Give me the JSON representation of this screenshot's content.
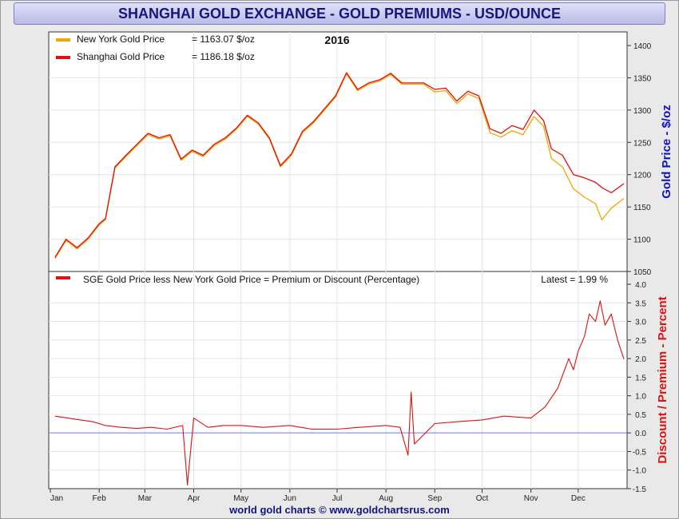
{
  "title": "SHANGHAI GOLD EXCHANGE - GOLD PREMIUMS - USD/OUNCE",
  "footer": "world gold charts © www.goldchartsrus.com",
  "colors": {
    "ny": "#f2a600",
    "sh": "#e01010",
    "premium": "#e01010",
    "zero_line": "#7777ee",
    "left_axis_label": "#1010cc",
    "right_axis_label": "#e01010"
  },
  "chart_data": [
    {
      "type": "line",
      "title": "2016",
      "ylabel": "Gold Price - $/oz",
      "ylim": [
        1050,
        1400
      ],
      "yticks": [
        1050,
        1100,
        1150,
        1200,
        1250,
        1300,
        1350,
        1400
      ],
      "legend": [
        {
          "name": "New York Gold Price",
          "value": "= 1163.07 $/oz"
        },
        {
          "name": "Shanghai Gold Price",
          "value": "= 1186.18 $/oz"
        }
      ],
      "x": [
        "2016-01-04",
        "2016-01-11",
        "2016-01-18",
        "2016-01-25",
        "2016-02-01",
        "2016-02-05",
        "2016-02-11",
        "2016-02-18",
        "2016-02-25",
        "2016-03-03",
        "2016-03-10",
        "2016-03-17",
        "2016-03-24",
        "2016-03-31",
        "2016-04-07",
        "2016-04-14",
        "2016-04-21",
        "2016-04-28",
        "2016-05-05",
        "2016-05-12",
        "2016-05-19",
        "2016-05-26",
        "2016-06-02",
        "2016-06-09",
        "2016-06-16",
        "2016-06-23",
        "2016-06-30",
        "2016-07-07",
        "2016-07-14",
        "2016-07-21",
        "2016-07-28",
        "2016-08-04",
        "2016-08-11",
        "2016-08-18",
        "2016-08-25",
        "2016-09-01",
        "2016-09-08",
        "2016-09-15",
        "2016-09-22",
        "2016-09-29",
        "2016-10-06",
        "2016-10-13",
        "2016-10-20",
        "2016-10-27",
        "2016-11-03",
        "2016-11-09",
        "2016-11-14",
        "2016-11-21",
        "2016-11-28",
        "2016-12-05",
        "2016-12-12",
        "2016-12-16",
        "2016-12-22",
        "2016-12-30"
      ],
      "series": [
        {
          "name": "New York Gold Price",
          "values": [
            1070,
            1098,
            1085,
            1100,
            1122,
            1130,
            1210,
            1228,
            1245,
            1262,
            1255,
            1260,
            1222,
            1236,
            1228,
            1245,
            1255,
            1270,
            1290,
            1278,
            1255,
            1212,
            1230,
            1265,
            1280,
            1300,
            1320,
            1356,
            1330,
            1340,
            1345,
            1355,
            1340,
            1340,
            1340,
            1328,
            1330,
            1310,
            1325,
            1318,
            1265,
            1258,
            1268,
            1262,
            1290,
            1275,
            1225,
            1212,
            1178,
            1165,
            1155,
            1130,
            1148,
            1163
          ]
        },
        {
          "name": "Shanghai Gold Price",
          "values": [
            1072,
            1100,
            1087,
            1102,
            1124,
            1132,
            1212,
            1230,
            1247,
            1264,
            1257,
            1262,
            1224,
            1238,
            1230,
            1247,
            1257,
            1272,
            1292,
            1280,
            1257,
            1214,
            1232,
            1267,
            1282,
            1302,
            1322,
            1358,
            1332,
            1342,
            1347,
            1357,
            1342,
            1342,
            1342,
            1332,
            1334,
            1314,
            1329,
            1322,
            1271,
            1264,
            1276,
            1270,
            1300,
            1284,
            1240,
            1230,
            1200,
            1195,
            1188,
            1180,
            1172,
            1186
          ]
        }
      ]
    },
    {
      "type": "line",
      "ylabel": "Discount / Premium - Percent",
      "ylim": [
        -1.5,
        4.0
      ],
      "yticks": [
        -1.5,
        -1.0,
        -0.5,
        0.0,
        0.5,
        1.0,
        1.5,
        2.0,
        2.5,
        3.0,
        3.5,
        4.0
      ],
      "legend": [
        {
          "name": "SGE Gold Price less New York Gold Price = Premium or Discount (Percentage)"
        }
      ],
      "latest": "Latest = 1.99 %",
      "xticks": [
        "Jan",
        "Feb",
        "Mar",
        "Apr",
        "May",
        "Jun",
        "Jul",
        "Aug",
        "Sep",
        "Oct",
        "Nov",
        "Dec"
      ],
      "x": [
        "2016-01-04",
        "2016-01-12",
        "2016-01-20",
        "2016-01-28",
        "2016-02-05",
        "2016-02-15",
        "2016-02-25",
        "2016-03-05",
        "2016-03-15",
        "2016-03-25",
        "2016-03-28",
        "2016-04-01",
        "2016-04-10",
        "2016-04-20",
        "2016-05-01",
        "2016-05-15",
        "2016-06-01",
        "2016-06-15",
        "2016-07-01",
        "2016-07-15",
        "2016-08-01",
        "2016-08-10",
        "2016-08-15",
        "2016-08-17",
        "2016-08-19",
        "2016-09-01",
        "2016-09-15",
        "2016-10-01",
        "2016-10-15",
        "2016-11-01",
        "2016-11-10",
        "2016-11-18",
        "2016-11-25",
        "2016-11-28",
        "2016-12-01",
        "2016-12-05",
        "2016-12-08",
        "2016-12-12",
        "2016-12-15",
        "2016-12-18",
        "2016-12-22",
        "2016-12-26",
        "2016-12-30"
      ],
      "series": [
        {
          "name": "SGE Gold Price less New York Gold Price",
          "values": [
            0.45,
            0.4,
            0.35,
            0.3,
            0.2,
            0.15,
            0.12,
            0.15,
            0.1,
            0.2,
            -1.4,
            0.4,
            0.15,
            0.2,
            0.2,
            0.15,
            0.2,
            0.1,
            0.1,
            0.15,
            0.2,
            0.15,
            -0.6,
            1.1,
            -0.3,
            0.25,
            0.3,
            0.35,
            0.45,
            0.4,
            0.7,
            1.2,
            2.0,
            1.7,
            2.2,
            2.6,
            3.2,
            3.0,
            3.55,
            2.9,
            3.2,
            2.5,
            1.99
          ]
        }
      ]
    }
  ]
}
